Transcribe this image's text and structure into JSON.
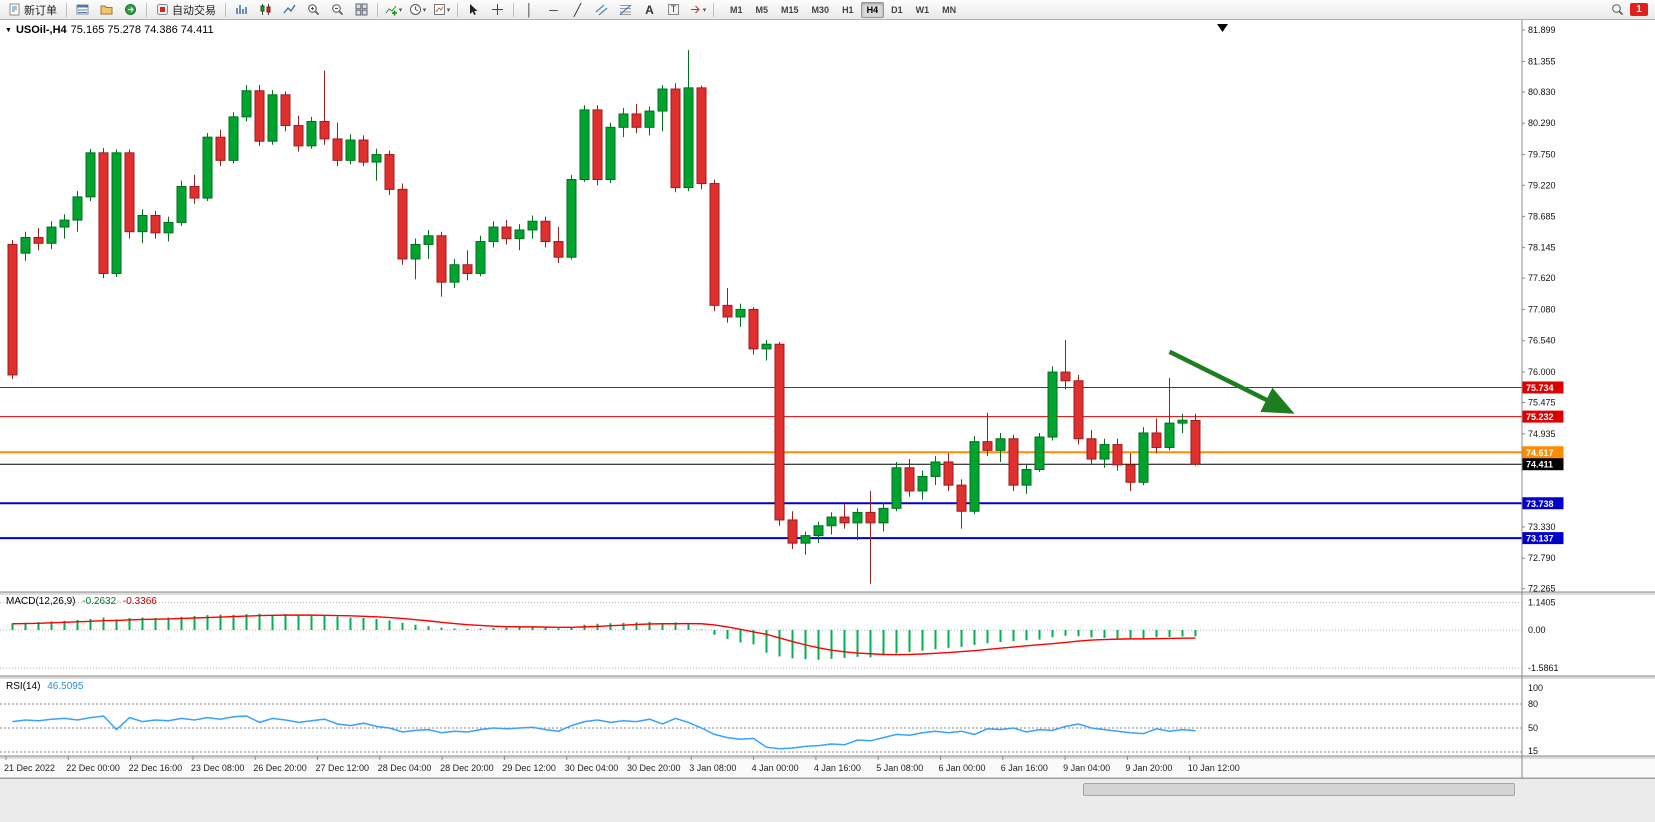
{
  "toolbar": {
    "new_order_label": "新订单",
    "auto_trading_label": "自动交易",
    "timeframes": [
      "M1",
      "M5",
      "M15",
      "M30",
      "H1",
      "H4",
      "D1",
      "W1",
      "MN"
    ],
    "active_timeframe": "H4",
    "notification_badge": "1"
  },
  "chart": {
    "symbol_period": "USOil-,H4",
    "ohlc_text": "75.165 75.278 74.386 74.411"
  },
  "macd_panel": {
    "name": "MACD(12,26,9)",
    "value_main": "-0.2632",
    "value_signal": "-0.3366"
  },
  "rsi_panel": {
    "name": "RSI(14)",
    "value": "46.5095"
  },
  "chart_data": {
    "type": "candlestick",
    "symbol": "USOil-",
    "period": "H4",
    "up_color": "#00a32e",
    "up_stroke": "#00701f",
    "down_color": "#e02f2f",
    "down_stroke": "#9c1d1d",
    "y_axis_labels": [
      "81.899",
      "81.355",
      "80.830",
      "80.290",
      "79.750",
      "79.220",
      "78.685",
      "78.145",
      "77.620",
      "77.080",
      "76.540",
      "76.000",
      "75.475",
      "74.935",
      "73.330",
      "72.790",
      "72.265"
    ],
    "x_axis_labels": [
      "21 Dec 2022",
      "22 Dec 00:00",
      "22 Dec 16:00",
      "23 Dec 08:00",
      "26 Dec 20:00",
      "27 Dec 12:00",
      "28 Dec 04:00",
      "28 Dec 20:00",
      "29 Dec 12:00",
      "30 Dec 04:00",
      "30 Dec 20:00",
      "3 Jan 08:00",
      "4 Jan 00:00",
      "4 Jan 16:00",
      "5 Jan 08:00",
      "6 Jan 00:00",
      "6 Jan 16:00",
      "9 Jan 04:00",
      "9 Jan 20:00",
      "10 Jan 12:00"
    ],
    "h_lines": [
      {
        "price": 75.734,
        "label": "75.734",
        "color": "#dd0000",
        "width": 1,
        "role": "resistance"
      },
      {
        "price": 75.232,
        "label": "75.232",
        "color": "#dd0000",
        "width": 1,
        "role": "resistance"
      },
      {
        "price": 74.617,
        "label": "74.617",
        "color": "#ff8c00",
        "width": 2,
        "role": "level"
      },
      {
        "price": 74.411,
        "label": "74.411",
        "color": "#000000",
        "width": 1,
        "role": "current-price"
      },
      {
        "price": 73.738,
        "label": "73.738",
        "color": "#0000cc",
        "width": 2,
        "role": "support"
      },
      {
        "price": 73.137,
        "label": "73.137",
        "color": "#0000cc",
        "width": 2,
        "role": "support"
      }
    ],
    "annotation_arrow": {
      "color": "#1e7d1e",
      "from_index": 89,
      "from_price": 76.35,
      "to_index": 98,
      "to_price": 75.35
    },
    "candles": [
      [
        78.2,
        78.28,
        75.88,
        75.95
      ],
      [
        78.05,
        78.42,
        77.92,
        78.32
      ],
      [
        78.32,
        78.48,
        78.1,
        78.22
      ],
      [
        78.22,
        78.6,
        78.12,
        78.5
      ],
      [
        78.5,
        78.72,
        78.3,
        78.62
      ],
      [
        78.62,
        79.12,
        78.42,
        79.02
      ],
      [
        79.02,
        79.85,
        78.95,
        79.78
      ],
      [
        79.78,
        79.86,
        77.62,
        77.7
      ],
      [
        77.7,
        79.84,
        77.64,
        79.78
      ],
      [
        79.78,
        79.84,
        78.3,
        78.42
      ],
      [
        78.42,
        78.8,
        78.22,
        78.7
      ],
      [
        78.7,
        78.78,
        78.3,
        78.4
      ],
      [
        78.4,
        78.68,
        78.25,
        78.58
      ],
      [
        78.58,
        79.3,
        78.52,
        79.2
      ],
      [
        79.2,
        79.4,
        78.9,
        79.0
      ],
      [
        79.0,
        80.12,
        78.95,
        80.05
      ],
      [
        80.05,
        80.18,
        79.55,
        79.65
      ],
      [
        79.65,
        80.48,
        79.6,
        80.4
      ],
      [
        80.4,
        80.95,
        80.32,
        80.85
      ],
      [
        80.85,
        80.95,
        79.9,
        79.98
      ],
      [
        79.98,
        80.86,
        79.92,
        80.78
      ],
      [
        80.78,
        80.84,
        80.15,
        80.25
      ],
      [
        80.25,
        80.42,
        79.8,
        79.9
      ],
      [
        79.9,
        80.4,
        79.85,
        80.32
      ],
      [
        80.32,
        81.2,
        79.92,
        80.02
      ],
      [
        80.02,
        80.3,
        79.55,
        79.65
      ],
      [
        79.65,
        80.1,
        79.58,
        80.0
      ],
      [
        80.0,
        80.08,
        79.55,
        79.62
      ],
      [
        79.62,
        79.85,
        79.3,
        79.75
      ],
      [
        79.75,
        79.82,
        79.05,
        79.15
      ],
      [
        79.15,
        79.25,
        77.85,
        77.95
      ],
      [
        77.95,
        78.3,
        77.6,
        78.2
      ],
      [
        78.2,
        78.45,
        77.95,
        78.35
      ],
      [
        78.35,
        78.42,
        77.3,
        77.55
      ],
      [
        77.55,
        77.95,
        77.45,
        77.85
      ],
      [
        77.85,
        78.1,
        77.58,
        77.7
      ],
      [
        77.7,
        78.35,
        77.65,
        78.25
      ],
      [
        78.25,
        78.6,
        78.15,
        78.5
      ],
      [
        78.5,
        78.62,
        78.2,
        78.3
      ],
      [
        78.3,
        78.55,
        78.1,
        78.45
      ],
      [
        78.45,
        78.7,
        78.3,
        78.6
      ],
      [
        78.6,
        78.68,
        78.15,
        78.25
      ],
      [
        78.25,
        78.5,
        77.88,
        77.98
      ],
      [
        77.98,
        79.4,
        77.94,
        79.32
      ],
      [
        79.32,
        80.6,
        79.28,
        80.52
      ],
      [
        80.52,
        80.6,
        79.22,
        79.32
      ],
      [
        79.32,
        80.3,
        79.26,
        80.22
      ],
      [
        80.22,
        80.55,
        80.05,
        80.45
      ],
      [
        80.45,
        80.62,
        80.12,
        80.22
      ],
      [
        80.22,
        80.58,
        80.08,
        80.5
      ],
      [
        80.5,
        80.95,
        80.15,
        80.88
      ],
      [
        80.88,
        80.98,
        79.1,
        79.18
      ],
      [
        79.18,
        81.55,
        79.12,
        80.9
      ],
      [
        80.9,
        80.94,
        79.15,
        79.25
      ],
      [
        79.25,
        79.32,
        77.05,
        77.15
      ],
      [
        77.15,
        77.45,
        76.85,
        76.95
      ],
      [
        76.95,
        77.18,
        76.78,
        77.08
      ],
      [
        77.08,
        77.12,
        76.3,
        76.4
      ],
      [
        76.4,
        76.55,
        76.2,
        76.48
      ],
      [
        76.48,
        76.52,
        73.35,
        73.45
      ],
      [
        73.45,
        73.6,
        72.95,
        73.05
      ],
      [
        73.05,
        73.25,
        72.85,
        73.18
      ],
      [
        73.18,
        73.42,
        73.05,
        73.35
      ],
      [
        73.35,
        73.58,
        73.2,
        73.5
      ],
      [
        73.5,
        73.72,
        73.3,
        73.4
      ],
      [
        73.4,
        73.65,
        73.1,
        73.58
      ],
      [
        73.58,
        73.95,
        72.35,
        73.4
      ],
      [
        73.4,
        73.75,
        73.25,
        73.65
      ],
      [
        73.65,
        74.45,
        73.6,
        74.35
      ],
      [
        74.35,
        74.5,
        73.85,
        73.95
      ],
      [
        73.95,
        74.3,
        73.8,
        74.2
      ],
      [
        74.2,
        74.55,
        74.05,
        74.45
      ],
      [
        74.45,
        74.6,
        73.95,
        74.05
      ],
      [
        74.05,
        74.15,
        73.3,
        73.6
      ],
      [
        73.6,
        74.9,
        73.55,
        74.8
      ],
      [
        74.8,
        75.3,
        74.55,
        74.65
      ],
      [
        74.65,
        74.95,
        74.45,
        74.85
      ],
      [
        74.85,
        74.92,
        73.95,
        74.05
      ],
      [
        74.05,
        74.4,
        73.9,
        74.32
      ],
      [
        74.32,
        74.95,
        74.28,
        74.88
      ],
      [
        74.88,
        76.1,
        74.82,
        76.0
      ],
      [
        76.0,
        76.55,
        75.7,
        75.85
      ],
      [
        75.85,
        75.95,
        74.75,
        74.85
      ],
      [
        74.85,
        75.0,
        74.4,
        74.5
      ],
      [
        74.5,
        74.85,
        74.35,
        74.75
      ],
      [
        74.75,
        74.85,
        74.3,
        74.4
      ],
      [
        74.4,
        74.6,
        73.95,
        74.1
      ],
      [
        74.1,
        75.05,
        74.05,
        74.95
      ],
      [
        74.95,
        75.2,
        74.6,
        74.7
      ],
      [
        74.7,
        75.9,
        74.65,
        75.12
      ],
      [
        75.12,
        75.28,
        74.95,
        75.17
      ],
      [
        75.165,
        75.278,
        74.386,
        74.411
      ]
    ],
    "macd": {
      "hist_color": "#00b050",
      "signal_color": "#ff0000",
      "scale": [
        "1.1405",
        "0.00",
        "-1.5861"
      ],
      "histogram": [
        0.28,
        0.3,
        0.33,
        0.36,
        0.38,
        0.42,
        0.46,
        0.52,
        0.44,
        0.5,
        0.52,
        0.5,
        0.52,
        0.55,
        0.58,
        0.62,
        0.64,
        0.63,
        0.66,
        0.68,
        0.64,
        0.66,
        0.64,
        0.6,
        0.62,
        0.56,
        0.52,
        0.5,
        0.46,
        0.4,
        0.3,
        0.22,
        0.16,
        0.1,
        0.06,
        0.05,
        0.06,
        0.08,
        0.1,
        0.11,
        0.12,
        0.1,
        0.07,
        0.12,
        0.22,
        0.26,
        0.28,
        0.3,
        0.32,
        0.34,
        0.26,
        0.32,
        0.24,
        0.02,
        -0.2,
        -0.38,
        -0.52,
        -0.6,
        -0.95,
        -1.1,
        -1.18,
        -1.22,
        -1.24,
        -1.2,
        -1.16,
        -1.12,
        -1.14,
        -1.06,
        -0.98,
        -0.92,
        -0.86,
        -0.8,
        -0.74,
        -0.7,
        -0.62,
        -0.55,
        -0.5,
        -0.46,
        -0.43,
        -0.4,
        -0.3,
        -0.24,
        -0.26,
        -0.31,
        -0.33,
        -0.36,
        -0.38,
        -0.36,
        -0.31,
        -0.29,
        -0.27,
        -0.2632
      ],
      "signal": [
        0.26,
        0.27,
        0.28,
        0.3,
        0.32,
        0.34,
        0.36,
        0.39,
        0.4,
        0.42,
        0.44,
        0.45,
        0.46,
        0.48,
        0.5,
        0.52,
        0.54,
        0.56,
        0.58,
        0.6,
        0.61,
        0.62,
        0.62,
        0.62,
        0.61,
        0.6,
        0.59,
        0.57,
        0.55,
        0.52,
        0.48,
        0.43,
        0.38,
        0.32,
        0.27,
        0.22,
        0.19,
        0.16,
        0.14,
        0.13,
        0.13,
        0.12,
        0.11,
        0.11,
        0.13,
        0.15,
        0.18,
        0.2,
        0.23,
        0.25,
        0.26,
        0.26,
        0.27,
        0.26,
        0.21,
        0.13,
        0.03,
        -0.08,
        -0.18,
        -0.33,
        -0.48,
        -0.62,
        -0.74,
        -0.84,
        -0.91,
        -0.96,
        -0.99,
        -1.02,
        -1.03,
        -1.02,
        -1.0,
        -0.97,
        -0.94,
        -0.9,
        -0.86,
        -0.81,
        -0.76,
        -0.71,
        -0.66,
        -0.61,
        -0.57,
        -0.52,
        -0.46,
        -0.42,
        -0.4,
        -0.38,
        -0.37,
        -0.37,
        -0.36,
        -0.35,
        -0.34,
        -0.3366
      ]
    },
    "rsi": {
      "color": "#3aa0ff",
      "scale": [
        "100",
        "80",
        "50",
        "15"
      ],
      "levels": [
        80,
        50,
        20
      ],
      "values": [
        58,
        60,
        59,
        61,
        62,
        60,
        63,
        65,
        48,
        63,
        58,
        60,
        59,
        62,
        60,
        63,
        61,
        64,
        65,
        57,
        62,
        60,
        57,
        59,
        61,
        55,
        53,
        56,
        52,
        50,
        45,
        47,
        48,
        44,
        46,
        45,
        48,
        50,
        49,
        50,
        51,
        48,
        46,
        53,
        58,
        60,
        57,
        59,
        58,
        61,
        55,
        62,
        57,
        50,
        42,
        38,
        36,
        37,
        26,
        24,
        25,
        27,
        28,
        30,
        29,
        35,
        34,
        38,
        42,
        41,
        44,
        46,
        44,
        46,
        42,
        49,
        48,
        50,
        45,
        48,
        47,
        52,
        55,
        50,
        48,
        46,
        44,
        43,
        49,
        46,
        48,
        46.5
      ]
    }
  }
}
